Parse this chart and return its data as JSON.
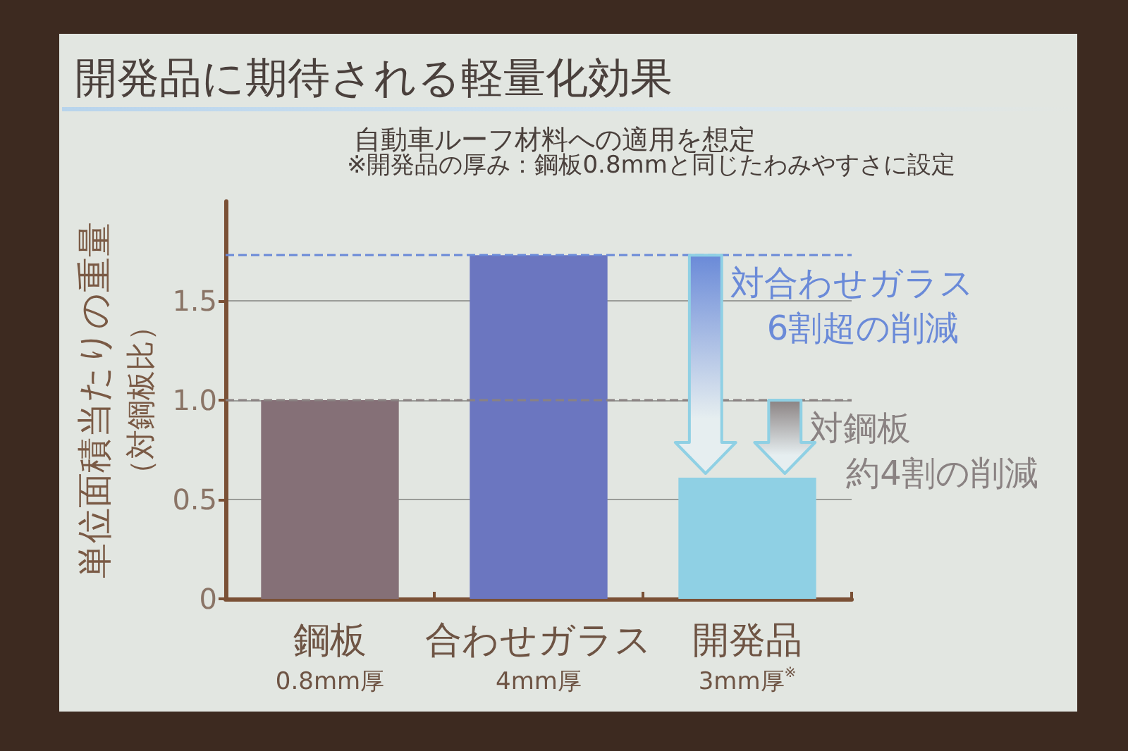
{
  "chart_data": {
    "type": "bar",
    "title": "開発品に期待される軽量化効果",
    "subtitle": "自動車ルーフ材料への適用を想定",
    "ylabel": "単位面積当たりの重量（対鋼板比）",
    "categories": [
      "鋼板\n0.8mm厚",
      "合わせガラス\n4mm厚",
      "開発品\n3mm厚$^{※}$"
    ],
    "values": [
      1.0,
      1.73,
      0.61
    ],
    "colors": [
      "#857077",
      "#6b76c0",
      "#8fd0e4"
    ],
    "ylim": [
      0,
      2
    ],
    "yticks": [
      0,
      0.5,
      {
        "value": 1,
        "label": "1.0"
      },
      1.5
    ],
    "grid": "y",
    "ref_lines": [
      {
        "axis": "y",
        "value": 1.73,
        "color": "#6a8ad8",
        "line_style": "dashed"
      },
      {
        "axis": "y",
        "value": 1.0,
        "color": "#8a8282",
        "line_style": "dashed"
      }
    ],
    "annotations": [
      "※開発品の厚み：鋼板0.8mmと同じたわみやすさに設定",
      "対合わせガラス",
      "6割超の削減",
      "対鋼板",
      "約4割の削減"
    ]
  }
}
